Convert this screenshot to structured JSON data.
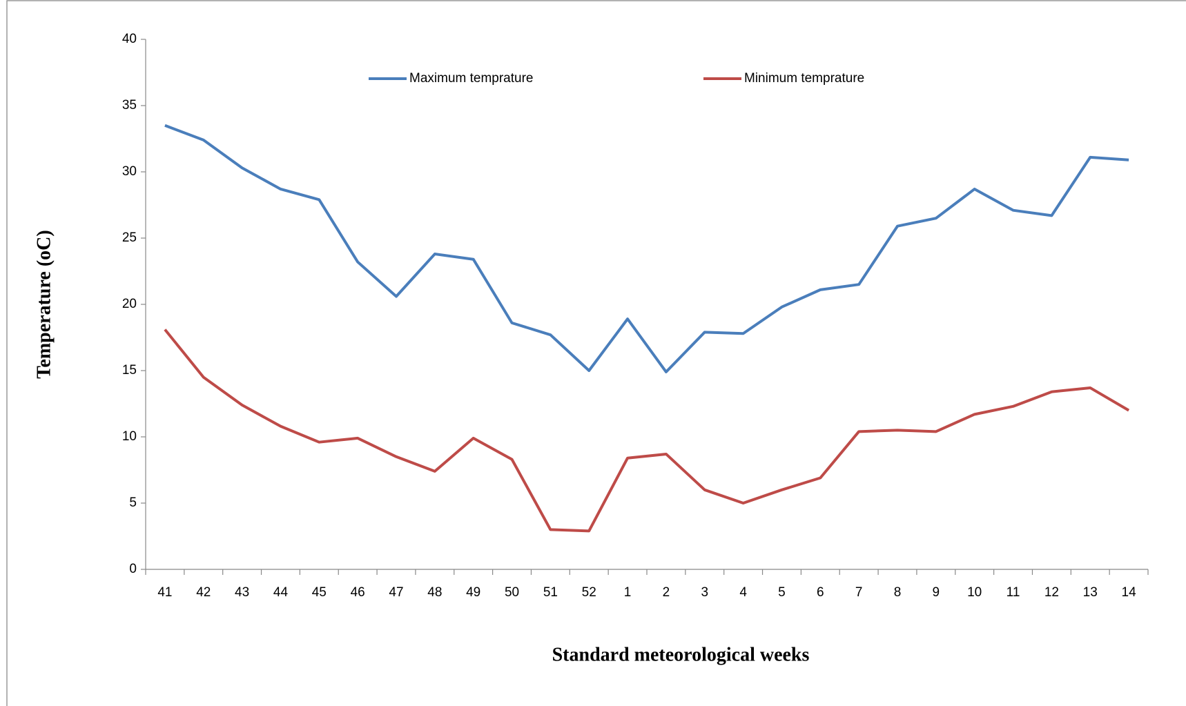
{
  "chart_data": {
    "type": "line",
    "x_label": "Standard meteorological weeks",
    "y_label": "Temperature (oC)",
    "categories": [
      "41",
      "42",
      "43",
      "44",
      "45",
      "46",
      "47",
      "48",
      "49",
      "50",
      "51",
      "52",
      "1",
      "2",
      "3",
      "4",
      "5",
      "6",
      "7",
      "8",
      "9",
      "10",
      "11",
      "12",
      "13",
      "14"
    ],
    "series": [
      {
        "name": "Maximum temprature",
        "color": "#4a7ebb",
        "values": [
          33.5,
          32.4,
          30.3,
          28.7,
          27.9,
          23.2,
          20.6,
          23.8,
          23.4,
          18.6,
          17.7,
          15.0,
          18.9,
          14.9,
          17.9,
          17.8,
          19.8,
          21.1,
          21.5,
          25.9,
          26.5,
          28.7,
          27.1,
          26.7,
          31.1,
          30.9
        ]
      },
      {
        "name": "Minimum temprature",
        "color": "#be4b48",
        "values": [
          18.1,
          14.5,
          12.4,
          10.8,
          9.6,
          9.9,
          8.5,
          7.4,
          9.9,
          8.3,
          3.0,
          2.9,
          8.4,
          8.7,
          6.0,
          5.0,
          6.0,
          6.9,
          10.4,
          10.5,
          10.4,
          11.7,
          12.3,
          13.4,
          13.7,
          12.0
        ]
      }
    ],
    "ylim": [
      0,
      40
    ],
    "yticks": [
      0,
      5,
      10,
      15,
      20,
      25,
      30,
      35,
      40
    ],
    "legend": "top",
    "grid": false
  }
}
